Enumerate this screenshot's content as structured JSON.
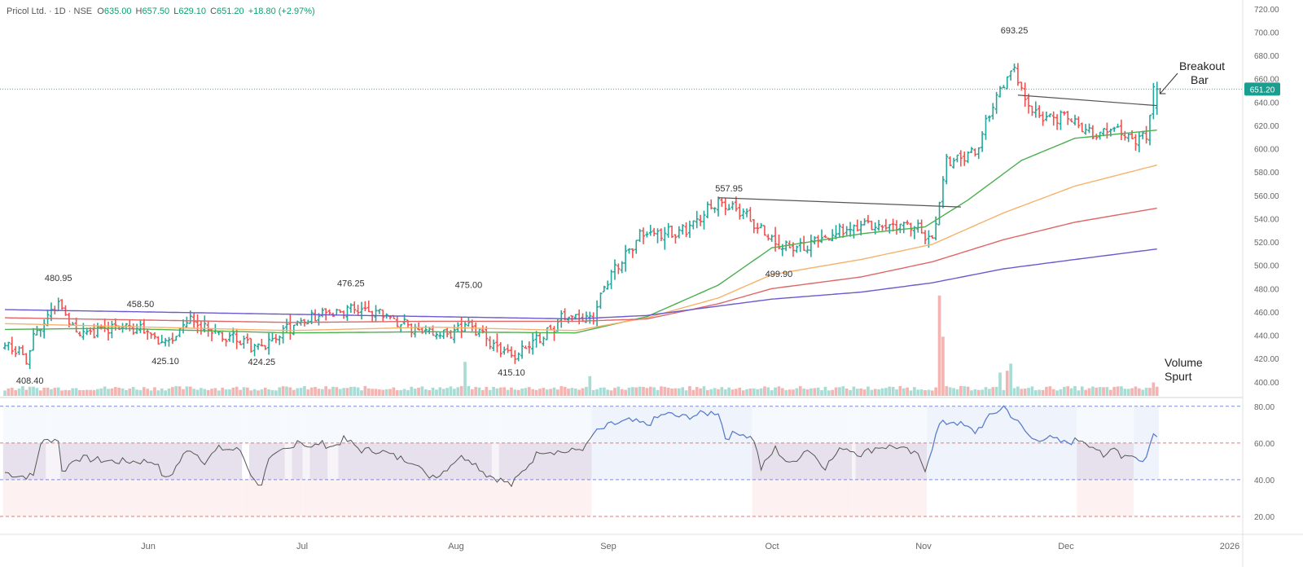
{
  "header": {
    "symbol": "Pricol Ltd. · 1D · NSE",
    "o_label": "O",
    "o_value": "635.00",
    "h_label": "H",
    "h_value": "657.50",
    "l_label": "L",
    "l_value": "629.10",
    "c_label": "C",
    "c_value": "651.20",
    "change": "+18.80 (+2.97%)"
  },
  "last_price": "651.20",
  "colors": {
    "up": "#26a69a",
    "down": "#ef5350",
    "ma_green": "#4caf50",
    "ma_orange": "#f6b26b",
    "ma_red": "#e06666",
    "ma_purple": "#6a5acd",
    "rsi_line": "#5b7fd1",
    "volume_up": "#a8dcd4",
    "volume_down": "#f4b4b2"
  },
  "chart_data": [
    {
      "type": "bar",
      "subtype": "ohlc",
      "title": "Pricol Ltd. · 1D · NSE",
      "x_ticks": [
        "Jun",
        "Jul",
        "Aug",
        "Sep",
        "Oct",
        "Nov",
        "Dec",
        "2026"
      ],
      "y_ticks": [
        "720.00",
        "700.00",
        "680.00",
        "660.00",
        "640.00",
        "620.00",
        "600.00",
        "580.00",
        "560.00",
        "540.00",
        "520.00",
        "500.00",
        "480.00",
        "460.00",
        "440.00",
        "420.00",
        "400.00"
      ],
      "ylim": [
        388,
        722
      ],
      "price_labels": [
        {
          "text": "408.40",
          "bar": 7,
          "value": 408.4,
          "pos": "below"
        },
        {
          "text": "480.95",
          "bar": 15,
          "value": 480.95,
          "pos": "above"
        },
        {
          "text": "458.50",
          "bar": 38,
          "value": 458.5,
          "pos": "above"
        },
        {
          "text": "425.10",
          "bar": 45,
          "value": 425.1,
          "pos": "below"
        },
        {
          "text": "424.25",
          "bar": 72,
          "value": 424.25,
          "pos": "below"
        },
        {
          "text": "476.25",
          "bar": 97,
          "value": 476.25,
          "pos": "above"
        },
        {
          "text": "475.00",
          "bar": 130,
          "value": 475.0,
          "pos": "above"
        },
        {
          "text": "415.10",
          "bar": 142,
          "value": 415.1,
          "pos": "below"
        },
        {
          "text": "557.95",
          "bar": 203,
          "value": 557.95,
          "pos": "above"
        },
        {
          "text": "499.90",
          "bar": 217,
          "value": 499.9,
          "pos": "below"
        },
        {
          "text": "693.25",
          "bar": 283,
          "value": 693.25,
          "pos": "above"
        }
      ],
      "annotations": [
        {
          "text_lines": [
            "Breakout",
            "Bar"
          ],
          "target_bar": 322,
          "target_value": 650
        },
        {
          "text_lines": [
            "Volume",
            "Spurt"
          ],
          "target_bar": 322,
          "target_value": 0
        }
      ],
      "trendlines": [
        {
          "from": [
            200,
            558
          ],
          "to": [
            268,
            550
          ]
        },
        {
          "from": [
            284,
            646
          ],
          "to": [
            323,
            637
          ]
        }
      ],
      "anchors": [
        [
          0,
          434
        ],
        [
          6,
          420
        ],
        [
          8,
          441
        ],
        [
          15,
          468
        ],
        [
          20,
          440
        ],
        [
          30,
          446
        ],
        [
          38,
          448
        ],
        [
          45,
          432
        ],
        [
          52,
          454
        ],
        [
          60,
          440
        ],
        [
          72,
          429
        ],
        [
          80,
          447
        ],
        [
          90,
          460
        ],
        [
          97,
          462
        ],
        [
          105,
          458
        ],
        [
          115,
          446
        ],
        [
          123,
          440
        ],
        [
          130,
          450
        ],
        [
          142,
          422
        ],
        [
          150,
          438
        ],
        [
          158,
          458
        ],
        [
          165,
          456
        ],
        [
          170,
          492
        ],
        [
          178,
          526
        ],
        [
          190,
          530
        ],
        [
          200,
          554
        ],
        [
          206,
          548
        ],
        [
          217,
          515
        ],
        [
          225,
          518
        ],
        [
          240,
          535
        ],
        [
          256,
          534
        ],
        [
          260,
          520
        ],
        [
          262,
          555
        ],
        [
          264,
          590
        ],
        [
          272,
          595
        ],
        [
          276,
          630
        ],
        [
          280,
          658
        ],
        [
          283,
          670
        ],
        [
          286,
          640
        ],
        [
          292,
          625
        ],
        [
          298,
          628
        ],
        [
          305,
          612
        ],
        [
          310,
          618
        ],
        [
          316,
          607
        ],
        [
          320,
          612
        ],
        [
          322,
          651
        ]
      ],
      "last_bar": {
        "open": 635.0,
        "high": 657.5,
        "low": 629.1,
        "close": 651.2
      },
      "moving_averages": [
        {
          "color": "#4caf50",
          "anchors": [
            [
              0,
              445
            ],
            [
              30,
              446
            ],
            [
              80,
              442
            ],
            [
              120,
              443
            ],
            [
              160,
              442
            ],
            [
              180,
              456
            ],
            [
              200,
              483
            ],
            [
              215,
              515
            ],
            [
              240,
              527
            ],
            [
              258,
              533
            ],
            [
              270,
              556
            ],
            [
              285,
              590
            ],
            [
              300,
              609
            ],
            [
              323,
              616
            ]
          ]
        },
        {
          "color": "#f6b26b",
          "anchors": [
            [
              0,
              450
            ],
            [
              40,
              447
            ],
            [
              80,
              444
            ],
            [
              120,
              447
            ],
            [
              160,
              444
            ],
            [
              180,
              455
            ],
            [
              200,
              472
            ],
            [
              215,
              492
            ],
            [
              240,
              505
            ],
            [
              260,
              518
            ],
            [
              280,
              545
            ],
            [
              300,
              568
            ],
            [
              323,
              586
            ]
          ]
        },
        {
          "color": "#e06666",
          "anchors": [
            [
              0,
              455
            ],
            [
              40,
              453
            ],
            [
              80,
              451
            ],
            [
              120,
              452
            ],
            [
              160,
              452
            ],
            [
              180,
              454
            ],
            [
              200,
              467
            ],
            [
              215,
              480
            ],
            [
              240,
              490
            ],
            [
              260,
              503
            ],
            [
              280,
              522
            ],
            [
              300,
              537
            ],
            [
              323,
              549
            ]
          ]
        },
        {
          "color": "#6a5acd",
          "anchors": [
            [
              0,
              462
            ],
            [
              40,
              460
            ],
            [
              80,
              458
            ],
            [
              120,
              456
            ],
            [
              160,
              454
            ],
            [
              180,
              457
            ],
            [
              200,
              465
            ],
            [
              215,
              471
            ],
            [
              240,
              477
            ],
            [
              260,
              485
            ],
            [
              280,
              497
            ],
            [
              300,
              505
            ],
            [
              323,
              514
            ]
          ]
        }
      ],
      "volume": {
        "baseline": 30,
        "spikes": {
          "129": 190,
          "164": 110,
          "262": 560,
          "263": 330,
          "279": 130,
          "281": 140,
          "282": 180,
          "322": 75
        }
      }
    },
    {
      "type": "line",
      "title": "",
      "y_ticks": [
        "80.00",
        "60.00",
        "40.00",
        "20.00"
      ],
      "ylim": [
        12,
        83
      ],
      "reference_lines": [
        80,
        60,
        40,
        20
      ],
      "anchors": [
        [
          0,
          44
        ],
        [
          4,
          42
        ],
        [
          8,
          42
        ],
        [
          10,
          60
        ],
        [
          13,
          62
        ],
        [
          15,
          62
        ],
        [
          16,
          44
        ],
        [
          20,
          52
        ],
        [
          30,
          50
        ],
        [
          38,
          50
        ],
        [
          42,
          50
        ],
        [
          45,
          40
        ],
        [
          47,
          44
        ],
        [
          50,
          53
        ],
        [
          52,
          57
        ],
        [
          56,
          50
        ],
        [
          60,
          57
        ],
        [
          66,
          56
        ],
        [
          70,
          39
        ],
        [
          72,
          38
        ],
        [
          74,
          50
        ],
        [
          78,
          56
        ],
        [
          80,
          57
        ],
        [
          82,
          62
        ],
        [
          86,
          57
        ],
        [
          88,
          60
        ],
        [
          92,
          58
        ],
        [
          95,
          62
        ],
        [
          97,
          60
        ],
        [
          100,
          56
        ],
        [
          105,
          56
        ],
        [
          110,
          52
        ],
        [
          115,
          50
        ],
        [
          118,
          42
        ],
        [
          122,
          43
        ],
        [
          127,
          52
        ],
        [
          130,
          52
        ],
        [
          135,
          43
        ],
        [
          140,
          39
        ],
        [
          142,
          37
        ],
        [
          145,
          44
        ],
        [
          150,
          56
        ],
        [
          158,
          55
        ],
        [
          163,
          58
        ],
        [
          165,
          65
        ],
        [
          170,
          70
        ],
        [
          175,
          72
        ],
        [
          180,
          70
        ],
        [
          185,
          76
        ],
        [
          190,
          74
        ],
        [
          196,
          76
        ],
        [
          200,
          77
        ],
        [
          202,
          63
        ],
        [
          206,
          66
        ],
        [
          210,
          62
        ],
        [
          212,
          46
        ],
        [
          216,
          57
        ],
        [
          220,
          48
        ],
        [
          225,
          57
        ],
        [
          230,
          47
        ],
        [
          235,
          58
        ],
        [
          240,
          54
        ],
        [
          245,
          58
        ],
        [
          250,
          58
        ],
        [
          256,
          53
        ],
        [
          258,
          46
        ],
        [
          262,
          70
        ],
        [
          266,
          72
        ],
        [
          272,
          66
        ],
        [
          276,
          74
        ],
        [
          280,
          80
        ],
        [
          284,
          71
        ],
        [
          288,
          62
        ],
        [
          292,
          63
        ],
        [
          297,
          60
        ],
        [
          302,
          62
        ],
        [
          306,
          57
        ],
        [
          308,
          51
        ],
        [
          311,
          59
        ],
        [
          313,
          53
        ],
        [
          316,
          54
        ],
        [
          318,
          50
        ],
        [
          320,
          52
        ],
        [
          322,
          65
        ]
      ],
      "bands": [
        {
          "from": 0,
          "to": 11,
          "kind": "neutral"
        },
        {
          "from": 12,
          "to": 15,
          "kind": "light"
        },
        {
          "from": 16,
          "to": 66,
          "kind": "neutral"
        },
        {
          "from": 67,
          "to": 68,
          "kind": "white"
        },
        {
          "from": 69,
          "to": 78,
          "kind": "neutral"
        },
        {
          "from": 79,
          "to": 80,
          "kind": "light"
        },
        {
          "from": 81,
          "to": 83,
          "kind": "neutral"
        },
        {
          "from": 84,
          "to": 85,
          "kind": "light"
        },
        {
          "from": 86,
          "to": 90,
          "kind": "neutral"
        },
        {
          "from": 91,
          "to": 93,
          "kind": "light"
        },
        {
          "from": 94,
          "to": 136,
          "kind": "neutral"
        },
        {
          "from": 137,
          "to": 138,
          "kind": "light"
        },
        {
          "from": 139,
          "to": 164,
          "kind": "neutral"
        },
        {
          "from": 165,
          "to": 209,
          "kind": "bull"
        },
        {
          "from": 210,
          "to": 237,
          "kind": "neutral"
        },
        {
          "from": 238,
          "to": 238,
          "kind": "light"
        },
        {
          "from": 239,
          "to": 258,
          "kind": "neutral"
        },
        {
          "from": 259,
          "to": 300,
          "kind": "bull"
        },
        {
          "from": 301,
          "to": 316,
          "kind": "neutral"
        },
        {
          "from": 317,
          "to": 323,
          "kind": "bull"
        }
      ]
    }
  ]
}
